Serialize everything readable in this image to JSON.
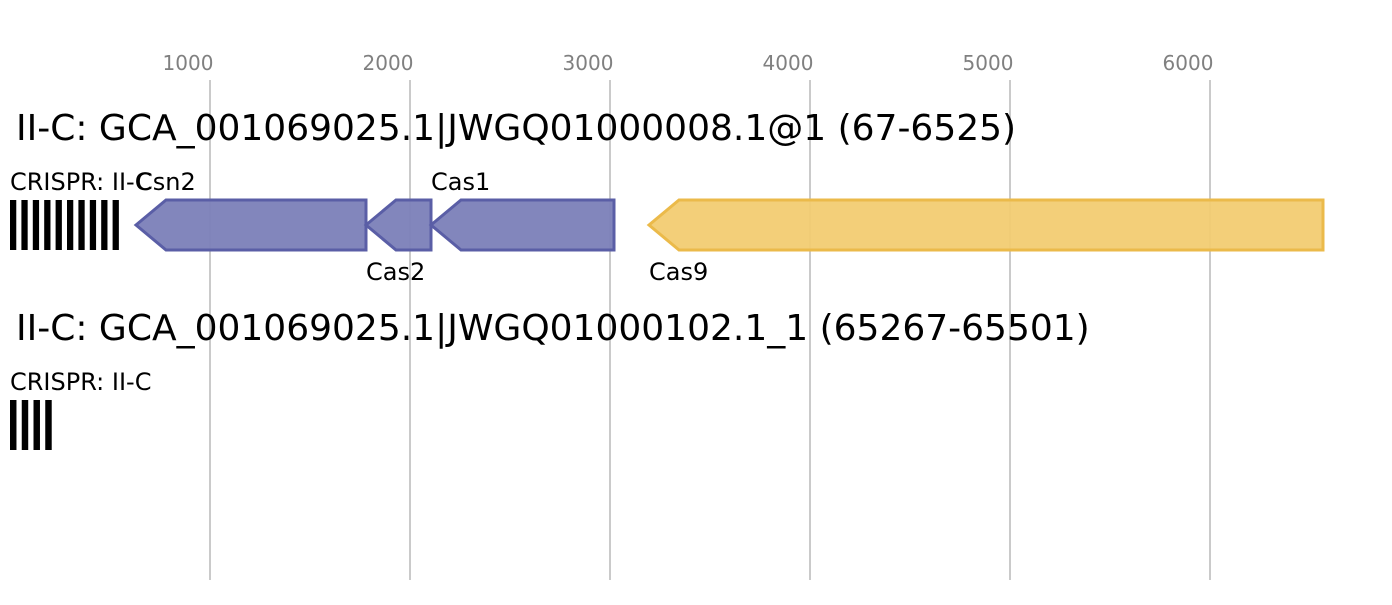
{
  "axis": {
    "ticks": [
      1000,
      2000,
      3000,
      4000,
      5000,
      6000
    ],
    "range": [
      0,
      6800
    ],
    "grid": true
  },
  "colors": {
    "cas_fill": "#7b7fb8",
    "cas_stroke": "#5a5ea6",
    "cas9_fill": "#f2cc72",
    "cas9_stroke": "#ebba4a",
    "crispr_bar": "#000000",
    "tick_text": "#808080",
    "grid": "#b8b8b8"
  },
  "loci": [
    {
      "title": "II-C: GCA_001069025.1|JWGQ01000008.1@1 (67-6525)",
      "crispr": {
        "label": "CRISPR: II-C",
        "start": 0,
        "end": 570,
        "repeats": 10
      },
      "genes": [
        {
          "label": "Csn2",
          "start": 630,
          "end": 1780,
          "strand": "-",
          "group": "cas",
          "label_pos": "above"
        },
        {
          "label": "Cas2",
          "start": 1780,
          "end": 2105,
          "strand": "-",
          "group": "cas",
          "label_pos": "below"
        },
        {
          "label": "Cas1",
          "start": 2105,
          "end": 3020,
          "strand": "-",
          "group": "cas",
          "label_pos": "above"
        },
        {
          "label": "Cas9",
          "start": 3195,
          "end": 6565,
          "strand": "-",
          "group": "cas9",
          "label_pos": "below"
        }
      ]
    },
    {
      "title": "II-C: GCA_001069025.1|JWGQ01000102.1_1 (65267-65501)",
      "crispr": {
        "label": "CRISPR: II-C",
        "start": 0,
        "end": 235,
        "repeats": 4
      },
      "genes": []
    }
  ]
}
